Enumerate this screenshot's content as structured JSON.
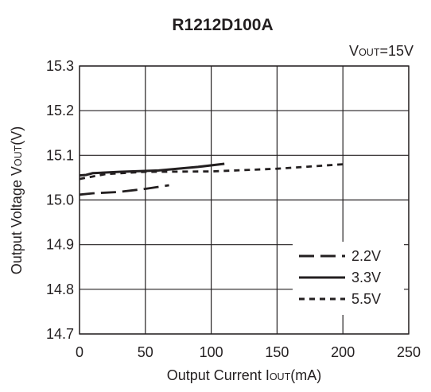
{
  "chart_data": {
    "type": "line",
    "title": "R1212D100A",
    "condition": {
      "text_main": "V",
      "text_sub": "OUT",
      "text_rest": "=15V"
    },
    "xlabel": {
      "before": "Output Current I",
      "sub": "OUT",
      "after": "(mA)"
    },
    "ylabel": {
      "before": "Output Voltage V",
      "sub": "OUT",
      "after": "(V)"
    },
    "xlim": [
      0,
      250
    ],
    "ylim": [
      14.7,
      15.3
    ],
    "x_ticks": [
      0,
      50,
      100,
      150,
      200,
      250
    ],
    "y_ticks": [
      14.7,
      14.8,
      14.9,
      15.0,
      15.1,
      15.2,
      15.3
    ],
    "x_tick_labels": [
      "0",
      "50",
      "100",
      "150",
      "200",
      "250"
    ],
    "y_tick_labels": [
      "14.7",
      "14.8",
      "14.9",
      "15.0",
      "15.1",
      "15.2",
      "15.3"
    ],
    "grid": true,
    "legend_position": "bottom-right",
    "series": [
      {
        "name": "2.2V",
        "style": "long-dash",
        "x": [
          0,
          10,
          30,
          50,
          68
        ],
        "y": [
          15.012,
          15.015,
          15.018,
          15.025,
          15.033
        ]
      },
      {
        "name": "3.3V",
        "style": "solid",
        "x": [
          0,
          5,
          10,
          30,
          60,
          90,
          110
        ],
        "y": [
          15.055,
          15.056,
          15.06,
          15.063,
          15.066,
          15.074,
          15.081
        ]
      },
      {
        "name": "5.5V",
        "style": "short-dash",
        "x": [
          0,
          20,
          50,
          100,
          150,
          200
        ],
        "y": [
          15.047,
          15.058,
          15.063,
          15.064,
          15.07,
          15.08
        ]
      }
    ]
  }
}
